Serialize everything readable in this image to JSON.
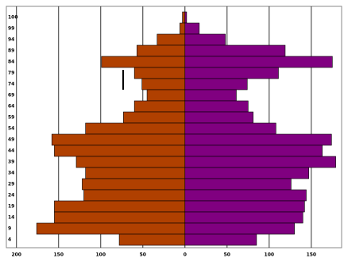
{
  "chart_data": {
    "type": "bar",
    "orientation": "horizontal",
    "categories": [
      "100",
      "99",
      "94",
      "89",
      "84",
      "79",
      "74",
      "69",
      "64",
      "59",
      "54",
      "49",
      "44",
      "39",
      "34",
      "29",
      "24",
      "19",
      "14",
      "9",
      "4"
    ],
    "series": [
      {
        "color": "#b04000",
        "values": [
          -3,
          -6,
          -33,
          -57,
          -99,
          -60,
          -51,
          -45,
          -60,
          -73,
          -118,
          -158,
          -155,
          -129,
          -118,
          -122,
          -120,
          -155,
          -155,
          -176,
          -78
        ]
      },
      {
        "color": "#800080",
        "values": [
          2,
          17,
          48,
          119,
          175,
          111,
          74,
          61,
          75,
          81,
          108,
          174,
          163,
          179,
          147,
          126,
          144,
          142,
          140,
          130,
          85
        ]
      }
    ],
    "xlim": [
      -212,
      186
    ],
    "xticks": [
      {
        "value": -200,
        "label": "200"
      },
      {
        "value": -150,
        "label": "150"
      },
      {
        "value": -100,
        "label": "100"
      },
      {
        "value": -50,
        "label": "50"
      },
      0,
      50,
      100,
      150
    ],
    "grid": true
  }
}
